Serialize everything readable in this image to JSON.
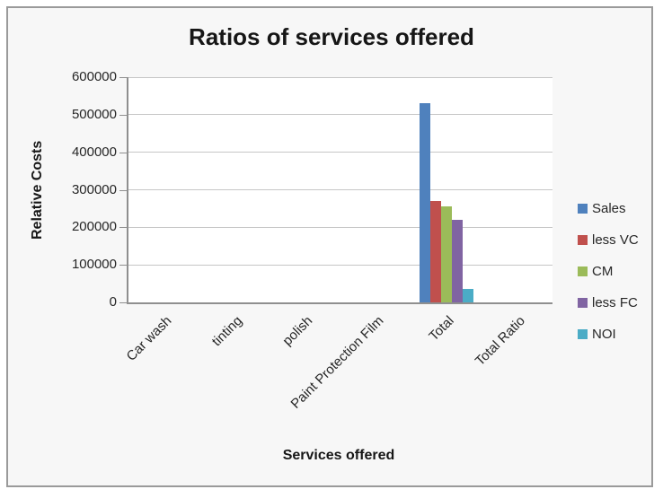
{
  "window": {
    "background_color": "#f7f7f7",
    "border_color": "#9a9a9a",
    "plot_background": "#ffffff",
    "gridline_color": "#c6c6c6",
    "axis_color": "#8f8f8f"
  },
  "chart_data": {
    "type": "bar",
    "title": "Ratios of services offered",
    "xlabel": "Services offered",
    "ylabel": "Relative Costs",
    "categories": [
      "Car wash",
      "tinting",
      "polish",
      "Paint Protection Film",
      "Total",
      "Total Ratio"
    ],
    "series": [
      {
        "name": "Sales",
        "color": "#4F81BD",
        "values": [
          0,
          0,
          0,
          0,
          530000,
          0
        ]
      },
      {
        "name": "less VC",
        "color": "#C0504D",
        "values": [
          0,
          0,
          0,
          0,
          270000,
          0
        ]
      },
      {
        "name": "CM",
        "color": "#9BBB59",
        "values": [
          0,
          0,
          0,
          0,
          256000,
          0
        ]
      },
      {
        "name": "less FC",
        "color": "#8064A2",
        "values": [
          0,
          0,
          0,
          0,
          220000,
          0
        ]
      },
      {
        "name": "NOI",
        "color": "#4BACC6",
        "values": [
          0,
          0,
          0,
          0,
          36000,
          0
        ]
      }
    ],
    "ylim": [
      0,
      600000
    ],
    "ytick_step": 100000,
    "yticks": [
      "0",
      "100000",
      "200000",
      "300000",
      "400000",
      "500000",
      "600000"
    ],
    "grid": true,
    "legend_position": "right",
    "legend_entries": [
      "Sales",
      "less VC",
      "CM",
      "less FC",
      "NOI"
    ]
  }
}
